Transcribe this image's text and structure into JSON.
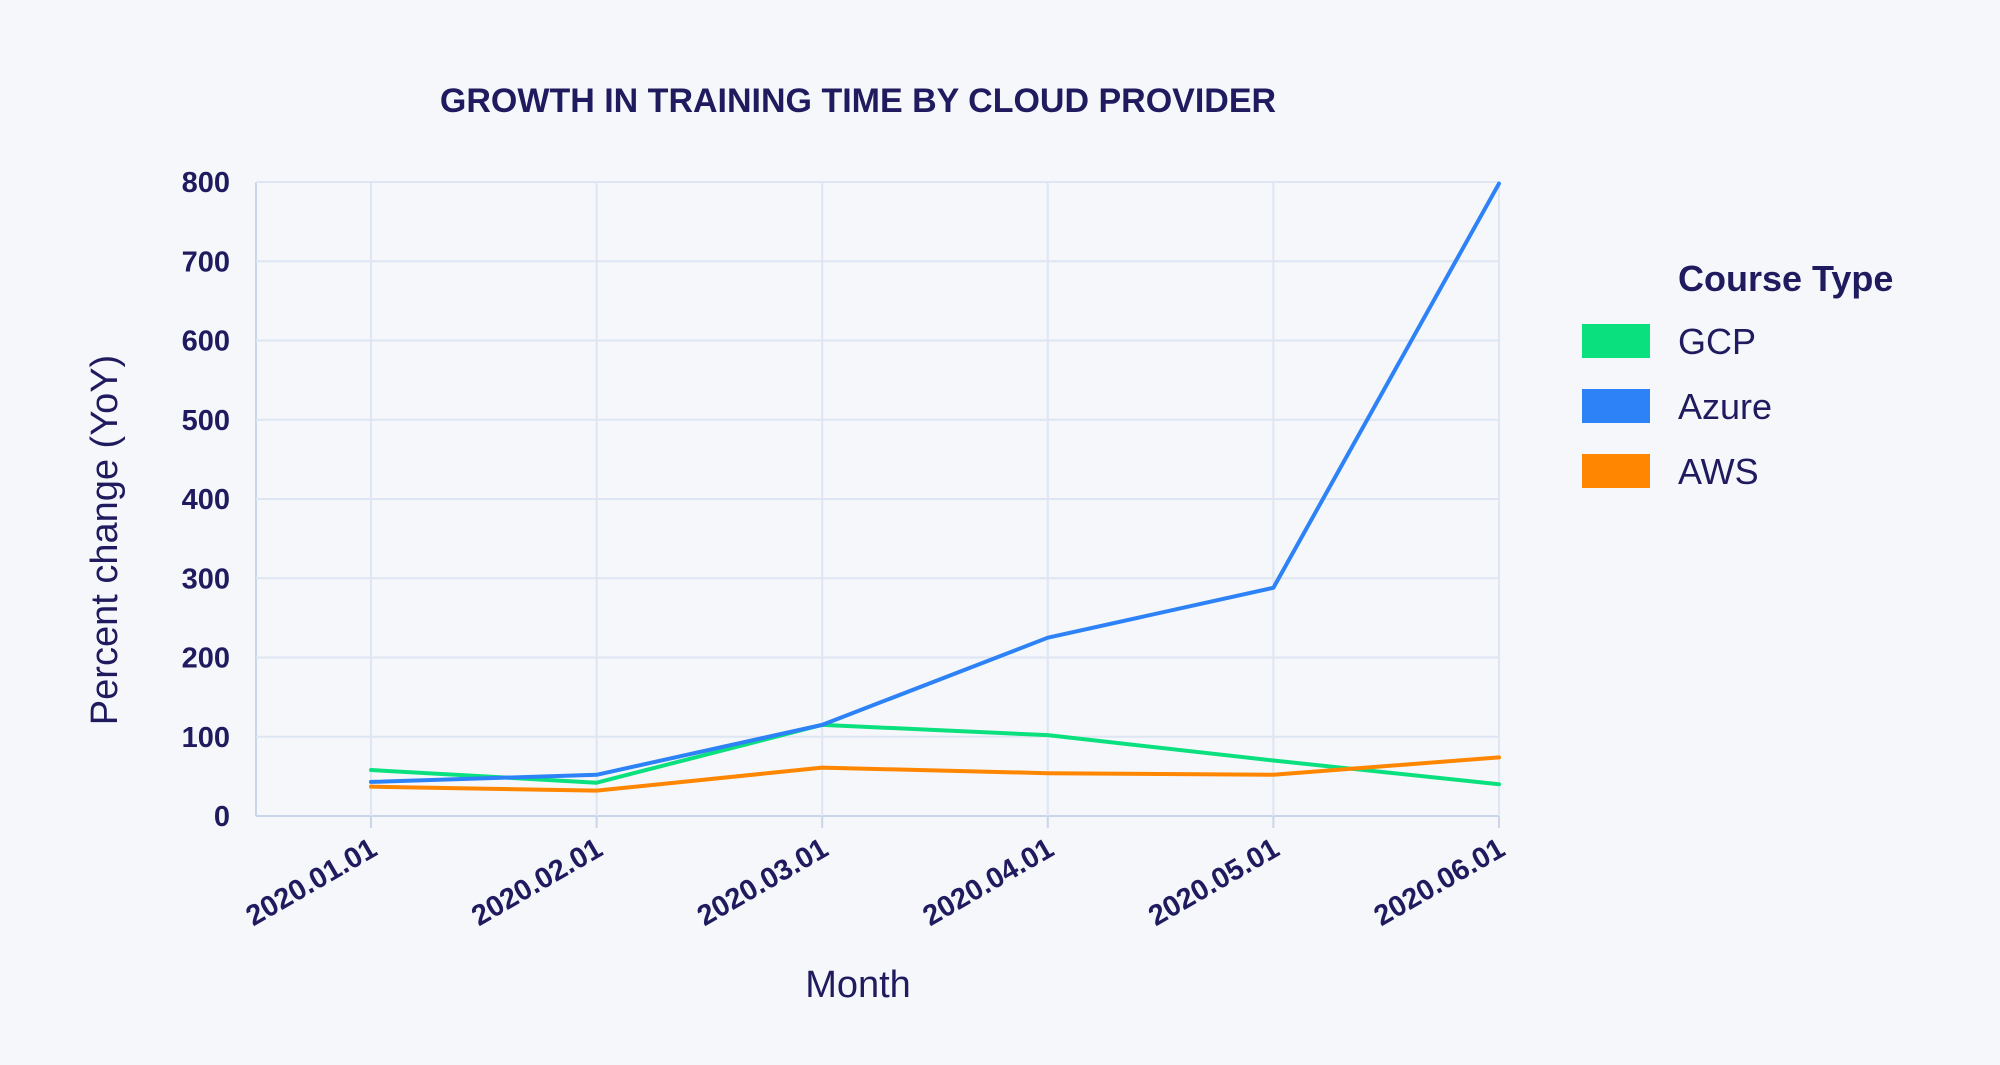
{
  "colors": {
    "background": "#f5f7fb",
    "text": "#1f1b5e",
    "grid": "#dde6f2"
  },
  "chart_data": {
    "type": "line",
    "title": "GROWTH IN TRAINING TIME BY CLOUD PROVIDER",
    "xlabel": "Month",
    "ylabel": "Percent change (YoY)",
    "categories": [
      "2020.01.01",
      "2020.02.01",
      "2020.03.01",
      "2020.04.01",
      "2020.05.01",
      "2020.06.01"
    ],
    "ylim": [
      0,
      800
    ],
    "yticks": [
      0,
      100,
      200,
      300,
      400,
      500,
      600,
      700,
      800
    ],
    "grid": true,
    "legend": {
      "title": "Course Type",
      "position": "right"
    },
    "series": [
      {
        "name": "GCP",
        "color": "#0be07e",
        "values": [
          58,
          42,
          115,
          102,
          70,
          40
        ]
      },
      {
        "name": "Azure",
        "color": "#2c82f6",
        "values": [
          43,
          52,
          115,
          225,
          288,
          798
        ]
      },
      {
        "name": "AWS",
        "color": "#ff8600",
        "values": [
          37,
          32,
          61,
          54,
          52,
          74
        ]
      }
    ]
  }
}
